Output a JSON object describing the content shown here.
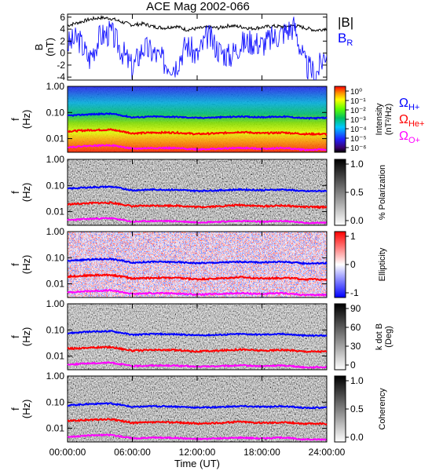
{
  "figure": {
    "title": "ACE Mag 2002-066",
    "xlabel": "Time (UT)",
    "xticks": [
      "00:00:00",
      "06:00:00",
      "12:00:00",
      "18:00:00",
      "24:00:00"
    ],
    "colors": {
      "b_total": "#000000",
      "b_r": "#0000ff",
      "cyclotron_h": "#0000ff",
      "cyclotron_he": "#ff0000",
      "cyclotron_o": "#ff00ff"
    }
  },
  "chart_data": [
    {
      "type": "line",
      "name": "magnetic_field",
      "ylabel": "B (nT)",
      "ylabel_line1": "B",
      "ylabel_line2": "(nT)",
      "ylim": [
        -4.5,
        6.5
      ],
      "yticks": [
        "6",
        "4",
        "2",
        "0",
        "-2",
        "-4"
      ],
      "ytick_values": [
        6,
        4,
        2,
        0,
        -2,
        -4
      ],
      "legend": [
        "|B|",
        "B"
      ],
      "legend_sub": [
        "",
        "R"
      ],
      "x_hours": [
        0,
        1,
        2,
        3,
        4,
        5,
        6,
        7,
        8,
        9,
        10,
        11,
        12,
        13,
        14,
        15,
        16,
        17,
        18,
        19,
        20,
        21,
        22,
        23,
        24
      ],
      "series": [
        {
          "name": "|B|",
          "values": [
            4.6,
            5.1,
            5.6,
            5.9,
            5.8,
            5.2,
            4.7,
            4.9,
            4.4,
            4.2,
            4.5,
            3.9,
            4.1,
            4.3,
            4.2,
            4.6,
            4.4,
            4.1,
            4.3,
            4.5,
            4.4,
            4.6,
            4.2,
            3.8,
            4.1
          ]
        },
        {
          "name": "BR",
          "values": [
            1.5,
            2.5,
            -1.0,
            2.8,
            3.5,
            0.5,
            -2.5,
            1.0,
            0.0,
            -1.5,
            -2.0,
            1.5,
            -0.5,
            3.0,
            0.5,
            -0.5,
            1.5,
            2.0,
            1.5,
            2.5,
            3.5,
            4.5,
            -2.0,
            -3.5,
            0.5
          ]
        }
      ]
    },
    {
      "type": "heatmap",
      "name": "intensity",
      "ylabel": "f (Hz)",
      "yticks": [
        "1.00",
        "0.10",
        "0.01"
      ],
      "ylim_hz": [
        0.003,
        1.0
      ],
      "colorbar_label": "Intensity (nT²/Hz)",
      "colorbar_label_line1": "Intensity",
      "colorbar_label_line2": "(nT²/Hz)",
      "colorbar_ticks": [
        "10⁰",
        "10⁻¹",
        "10⁻²",
        "10⁻³",
        "10⁻⁴",
        "10⁻⁵",
        "10⁻⁶"
      ],
      "colormap": "rainbow",
      "legend": [
        "Ω",
        "Ω",
        "Ω"
      ],
      "legend_sub": [
        "H+",
        "He+",
        "O+"
      ]
    },
    {
      "type": "heatmap",
      "name": "polarization",
      "ylabel": "f (Hz)",
      "yticks": [
        "1.00",
        "0.10",
        "0.01"
      ],
      "colorbar_label": "% Polarization",
      "colorbar_ticks": [
        "1.0",
        "0.5",
        "0.0"
      ],
      "colormap": "grey"
    },
    {
      "type": "heatmap",
      "name": "ellipticity",
      "ylabel": "f (Hz)",
      "yticks": [
        "1.00",
        "0.10",
        "0.01"
      ],
      "colorbar_label": "Ellipticity",
      "colorbar_ticks": [
        "1",
        "0",
        "-1"
      ],
      "colormap": "red-white-blue"
    },
    {
      "type": "heatmap",
      "name": "k_dot_b",
      "ylabel": "f (Hz)",
      "yticks": [
        "1.00",
        "0.10",
        "0.01"
      ],
      "colorbar_label": "k dot B (Deg)",
      "colorbar_label_line1": "k dot B",
      "colorbar_label_line2": "(Deg)",
      "colorbar_ticks": [
        "90",
        "60",
        "30",
        "0"
      ],
      "colormap": "grey"
    },
    {
      "type": "heatmap",
      "name": "coherency",
      "ylabel": "f (Hz)",
      "yticks": [
        "1.00",
        "0.10",
        "0.01"
      ],
      "colorbar_label": "Coherency",
      "colorbar_ticks": [
        "1.0",
        "0.5",
        "0.0"
      ],
      "colormap": "grey"
    }
  ],
  "cyclotron_lines": {
    "x_hours": [
      0,
      2,
      4,
      6,
      8,
      10,
      12,
      14,
      16,
      18,
      20,
      22,
      24
    ],
    "H+": [
      0.075,
      0.085,
      0.09,
      0.065,
      0.07,
      0.068,
      0.062,
      0.065,
      0.07,
      0.066,
      0.07,
      0.06,
      0.062
    ],
    "He+": [
      0.019,
      0.021,
      0.022,
      0.016,
      0.017,
      0.017,
      0.015,
      0.016,
      0.018,
      0.016,
      0.017,
      0.015,
      0.015
    ],
    "O+": [
      0.0047,
      0.0053,
      0.0056,
      0.0041,
      0.0044,
      0.0043,
      0.0039,
      0.0041,
      0.0044,
      0.0041,
      0.0044,
      0.0037,
      0.0038
    ]
  }
}
